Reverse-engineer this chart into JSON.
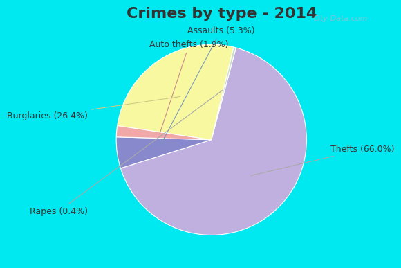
{
  "title": "Crimes by type - 2014",
  "slices": [
    {
      "label": "Thefts (66.0%)",
      "value": 66.0,
      "color": "#c0b0e0"
    },
    {
      "label": "Assaults (5.3%)",
      "value": 5.3,
      "color": "#8888cc"
    },
    {
      "label": "Auto thefts (1.9%)",
      "value": 1.9,
      "color": "#f0a8a8"
    },
    {
      "label": "Burglaries (26.4%)",
      "value": 26.4,
      "color": "#f8f8a0"
    },
    {
      "label": "Rapes (0.4%)",
      "value": 0.4,
      "color": "#c8ddc8"
    }
  ],
  "bg_color_outer": "#00e8f0",
  "bg_color_inner": "#e0f0e8",
  "title_fontsize": 16,
  "label_fontsize": 9,
  "watermark": "City-Data.com",
  "title_color": "#333333"
}
